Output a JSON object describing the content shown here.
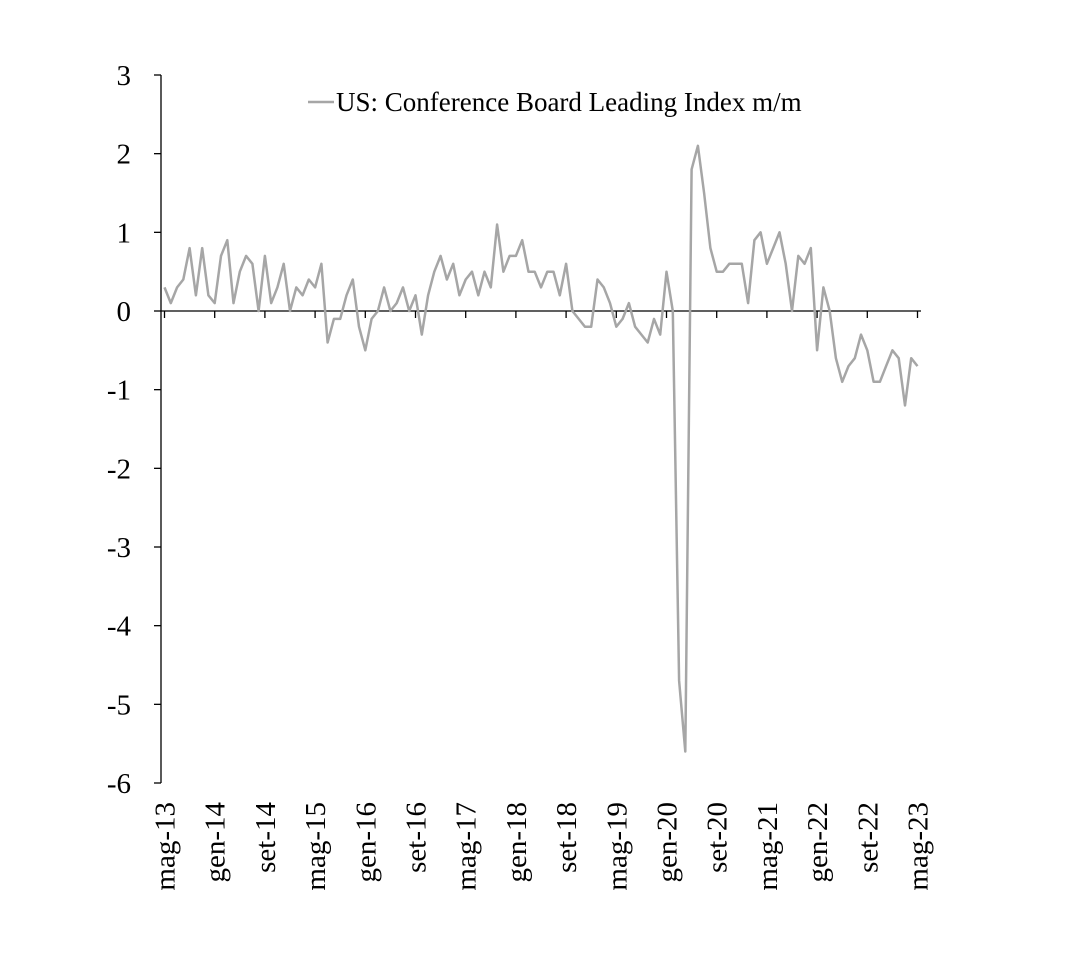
{
  "chart_data": {
    "type": "line",
    "title": "",
    "xlabel": "",
    "ylabel": "",
    "ylim": [
      -6,
      3
    ],
    "yticks": [
      "3",
      "2",
      "1",
      "0",
      "-1",
      "-2",
      "-3",
      "-4",
      "-5",
      "-6"
    ],
    "xticks": [
      "mag-13",
      "gen-14",
      "set-14",
      "mag-15",
      "gen-16",
      "set-16",
      "mag-17",
      "gen-18",
      "set-18",
      "mag-19",
      "gen-20",
      "set-20",
      "mag-21",
      "gen-22",
      "set-22",
      "mag-23"
    ],
    "grid": false,
    "legend": "top",
    "line_color": "#a6a6a6",
    "series": [
      {
        "name": "US: Conference Board Leading Index m/m",
        "start": "mag-13",
        "end": "mag-23",
        "values": [
          0.3,
          0.1,
          0.3,
          0.4,
          0.8,
          0.2,
          0.8,
          0.2,
          0.1,
          0.7,
          0.9,
          0.1,
          0.5,
          0.7,
          0.6,
          0.0,
          0.7,
          0.1,
          0.3,
          0.6,
          0.0,
          0.3,
          0.2,
          0.4,
          0.3,
          0.6,
          -0.4,
          -0.1,
          -0.1,
          0.2,
          0.4,
          -0.2,
          -0.5,
          -0.1,
          0.0,
          0.3,
          0.0,
          0.1,
          0.3,
          0.0,
          0.2,
          -0.3,
          0.2,
          0.5,
          0.7,
          0.4,
          0.6,
          0.2,
          0.4,
          0.5,
          0.2,
          0.5,
          0.3,
          1.1,
          0.5,
          0.7,
          0.7,
          0.9,
          0.5,
          0.5,
          0.3,
          0.5,
          0.5,
          0.2,
          0.6,
          0.0,
          -0.1,
          -0.2,
          -0.2,
          0.4,
          0.3,
          0.1,
          -0.2,
          -0.1,
          0.1,
          -0.2,
          -0.3,
          -0.4,
          -0.1,
          -0.3,
          0.5,
          0.0,
          -4.7,
          -5.6,
          1.8,
          2.1,
          1.5,
          0.8,
          0.5,
          0.5,
          0.6,
          0.6,
          0.6,
          0.1,
          0.9,
          1.0,
          0.6,
          0.8,
          1.0,
          0.6,
          0.0,
          0.7,
          0.6,
          0.8,
          -0.5,
          0.3,
          0.0,
          -0.6,
          -0.9,
          -0.7,
          -0.6,
          -0.3,
          -0.5,
          -0.9,
          -0.9,
          -0.7,
          -0.5,
          -0.6,
          -1.2,
          -0.6,
          -0.7
        ]
      }
    ]
  }
}
